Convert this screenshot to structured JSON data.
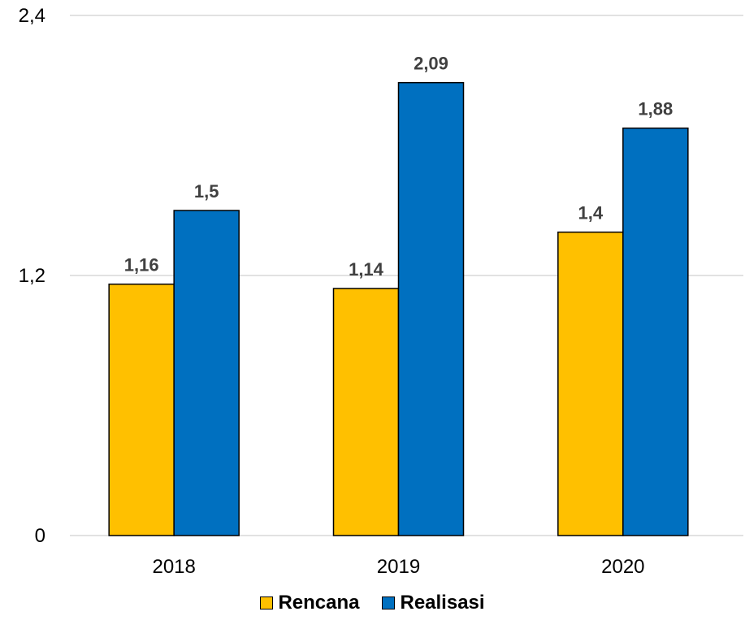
{
  "chart_data": {
    "type": "bar",
    "categories": [
      "2018",
      "2019",
      "2020"
    ],
    "series": [
      {
        "name": "Rencana",
        "color": "#FFC000",
        "values": [
          1.16,
          1.14,
          1.4
        ],
        "labels": [
          "1,16",
          "1,14",
          "1,4"
        ]
      },
      {
        "name": "Realisasi",
        "color": "#0070C0",
        "values": [
          1.5,
          2.09,
          1.88
        ],
        "labels": [
          "1,5",
          "2,09",
          "1,88"
        ]
      }
    ],
    "ylim": [
      0,
      2.4
    ],
    "yticks": [
      0,
      1.2,
      2.4
    ],
    "ytick_labels": [
      "0",
      "1,2",
      "2,4"
    ],
    "grid": true,
    "legend": "bottom",
    "gridline_color": "#D9D9D9"
  }
}
